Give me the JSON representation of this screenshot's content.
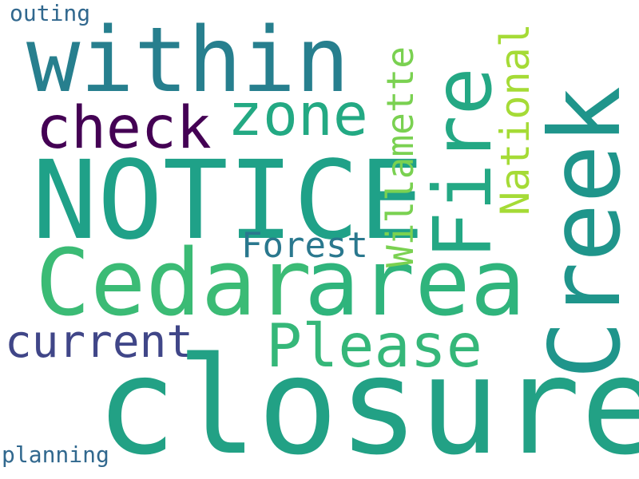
{
  "cloud": {
    "words": {
      "closure": {
        "text": "closure",
        "color": "#22a185"
      },
      "cedar": {
        "text": "Cedar",
        "color": "#3bbb75"
      },
      "area": {
        "text": "area",
        "color": "#2fb47c"
      },
      "notice": {
        "text": "NOTICE",
        "color": "#1fa188"
      },
      "within": {
        "text": "within",
        "color": "#277f8e"
      },
      "fire": {
        "text": "Fire",
        "color": "#24a884"
      },
      "creek": {
        "text": "Creek",
        "color": "#1f958b"
      },
      "zone": {
        "text": "zone",
        "color": "#23a983"
      },
      "check": {
        "text": "check",
        "color": "#440154"
      },
      "please": {
        "text": "Please",
        "color": "#35b779"
      },
      "current": {
        "text": "current",
        "color": "#404688"
      },
      "willamette": {
        "text": "Willamette",
        "color": "#7ad151"
      },
      "national": {
        "text": "National",
        "color": "#a5db36"
      },
      "forest": {
        "text": "Forest",
        "color": "#2a788e"
      },
      "outing": {
        "text": "outing",
        "color": "#31688e"
      },
      "planning": {
        "text": "planning",
        "color": "#31688e"
      }
    }
  }
}
